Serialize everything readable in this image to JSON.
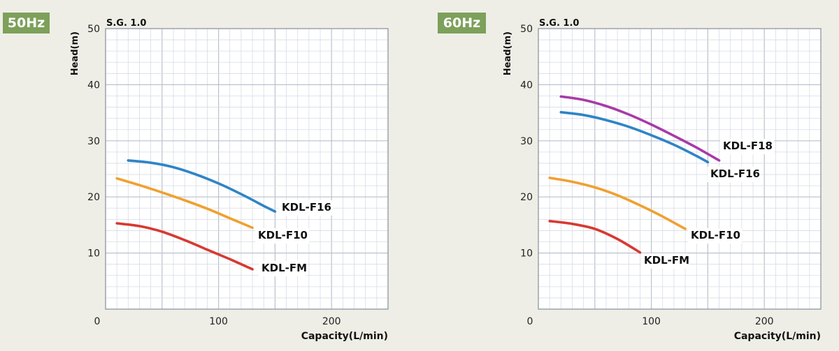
{
  "panels": [
    {
      "tag": "50Hz"
    },
    {
      "tag": "60Hz"
    }
  ],
  "chart_data": [
    {
      "type": "line",
      "title": "S.G. 1.0",
      "xlabel": "Capacity(L/min)",
      "ylabel": "Head(m)",
      "xlim": [
        0,
        250
      ],
      "ylim": [
        0,
        50
      ],
      "x_ticks": [
        "0",
        "100",
        "200"
      ],
      "y_ticks": [
        "10",
        "20",
        "30",
        "40",
        "50"
      ],
      "grid": true,
      "series": [
        {
          "name": "KDL-F16",
          "color": "#2f84c6",
          "points": [
            [
              20,
              26.5
            ],
            [
              40,
              26.1
            ],
            [
              60,
              25.3
            ],
            [
              80,
              24.0
            ],
            [
              100,
              22.4
            ],
            [
              120,
              20.5
            ],
            [
              140,
              18.4
            ],
            [
              150,
              17.4
            ]
          ]
        },
        {
          "name": "KDL-F10",
          "color": "#f0a030",
          "points": [
            [
              10,
              23.3
            ],
            [
              30,
              22.1
            ],
            [
              50,
              20.8
            ],
            [
              70,
              19.4
            ],
            [
              90,
              17.9
            ],
            [
              110,
              16.2
            ],
            [
              130,
              14.5
            ]
          ]
        },
        {
          "name": "KDL-FM",
          "color": "#d63a32",
          "points": [
            [
              10,
              15.3
            ],
            [
              30,
              14.8
            ],
            [
              50,
              13.8
            ],
            [
              70,
              12.3
            ],
            [
              90,
              10.6
            ],
            [
              110,
              8.9
            ],
            [
              130,
              7.1
            ]
          ]
        }
      ]
    },
    {
      "type": "line",
      "title": "S.G. 1.0",
      "xlabel": "Capacity(L/min)",
      "ylabel": "Head(m)",
      "xlim": [
        0,
        250
      ],
      "ylim": [
        0,
        50
      ],
      "x_ticks": [
        "0",
        "100",
        "200"
      ],
      "y_ticks": [
        "10",
        "20",
        "30",
        "40",
        "50"
      ],
      "grid": true,
      "series": [
        {
          "name": "KDL-F18",
          "color": "#a83aa8",
          "points": [
            [
              20,
              37.9
            ],
            [
              40,
              37.3
            ],
            [
              60,
              36.2
            ],
            [
              80,
              34.7
            ],
            [
              100,
              32.9
            ],
            [
              120,
              30.9
            ],
            [
              140,
              28.8
            ],
            [
              160,
              26.5
            ]
          ]
        },
        {
          "name": "KDL-F16",
          "color": "#2f84c6",
          "points": [
            [
              20,
              35.1
            ],
            [
              40,
              34.6
            ],
            [
              60,
              33.7
            ],
            [
              80,
              32.5
            ],
            [
              100,
              31.0
            ],
            [
              120,
              29.3
            ],
            [
              140,
              27.3
            ],
            [
              150,
              26.2
            ]
          ]
        },
        {
          "name": "KDL-F10",
          "color": "#f0a030",
          "points": [
            [
              10,
              23.4
            ],
            [
              30,
              22.7
            ],
            [
              50,
              21.7
            ],
            [
              70,
              20.3
            ],
            [
              90,
              18.5
            ],
            [
              110,
              16.5
            ],
            [
              130,
              14.3
            ]
          ]
        },
        {
          "name": "KDL-FM",
          "color": "#d63a32",
          "points": [
            [
              10,
              15.7
            ],
            [
              30,
              15.2
            ],
            [
              50,
              14.3
            ],
            [
              70,
              12.5
            ],
            [
              90,
              10.1
            ]
          ]
        }
      ]
    }
  ]
}
